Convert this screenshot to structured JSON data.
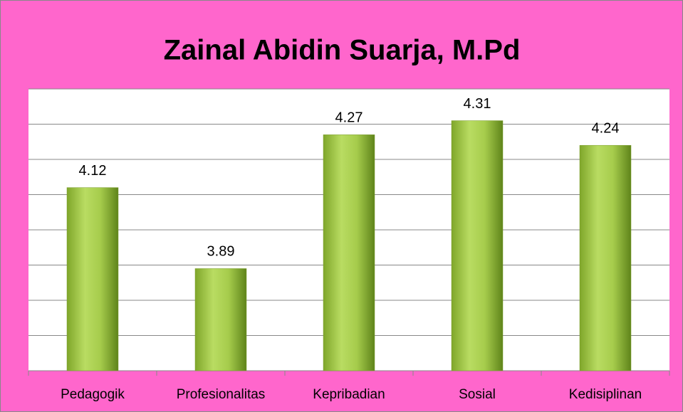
{
  "chart_data": {
    "type": "bar",
    "title": "Zainal Abidin Suarja, M.Pd",
    "categories": [
      "Pedagogik",
      "Profesionalitas",
      "Kepribadian",
      "Sosial",
      "Kedisiplinan"
    ],
    "values": [
      4.12,
      3.89,
      4.27,
      4.31,
      4.24
    ],
    "color": "#9bbb3c",
    "ylim": [
      3.6,
      4.4
    ],
    "yticks": [
      3.6,
      3.7,
      3.8,
      3.9,
      4.0,
      4.1,
      4.2,
      4.3,
      4.4
    ],
    "grid": true
  }
}
